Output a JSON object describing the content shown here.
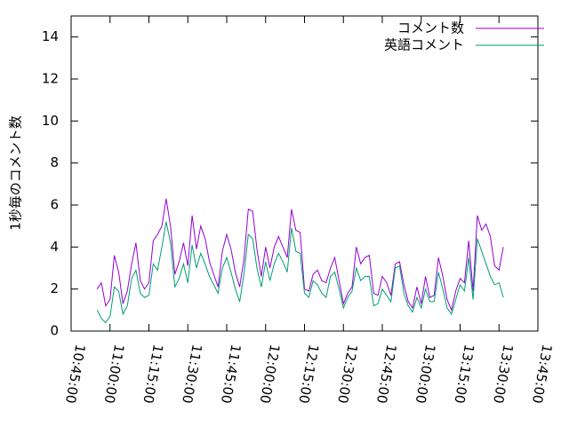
{
  "chart_data": {
    "type": "line",
    "ylabel": "1秒毎のコメント数",
    "x": [
      "10:55:00",
      "10:56:40",
      "10:58:20",
      "11:00:00",
      "11:01:40",
      "11:03:20",
      "11:05:00",
      "11:06:40",
      "11:08:20",
      "11:10:00",
      "11:11:40",
      "11:13:20",
      "11:15:00",
      "11:16:40",
      "11:18:20",
      "11:20:00",
      "11:21:40",
      "11:23:20",
      "11:25:00",
      "11:26:40",
      "11:28:20",
      "11:30:00",
      "11:31:40",
      "11:33:20",
      "11:35:00",
      "11:36:40",
      "11:38:20",
      "11:40:00",
      "11:41:40",
      "11:43:20",
      "11:45:00",
      "11:46:40",
      "11:48:20",
      "11:50:00",
      "11:51:40",
      "11:53:20",
      "11:55:00",
      "11:56:40",
      "11:58:20",
      "12:00:00",
      "12:01:40",
      "12:03:20",
      "12:05:00",
      "12:06:40",
      "12:08:20",
      "12:10:00",
      "12:11:40",
      "12:13:20",
      "12:15:00",
      "12:16:40",
      "12:18:20",
      "12:20:00",
      "12:21:40",
      "12:23:20",
      "12:25:00",
      "12:26:40",
      "12:28:20",
      "12:30:00",
      "12:31:40",
      "12:33:20",
      "12:35:00",
      "12:36:40",
      "12:38:20",
      "12:40:00",
      "12:41:40",
      "12:43:20",
      "12:45:00",
      "12:46:40",
      "12:48:20",
      "12:50:00",
      "12:51:40",
      "12:53:20",
      "12:55:00",
      "12:56:40",
      "12:58:20",
      "13:00:00",
      "13:01:40",
      "13:03:20",
      "13:05:00",
      "13:06:40",
      "13:08:20",
      "13:10:00",
      "13:11:40",
      "13:13:20",
      "13:15:00",
      "13:16:40",
      "13:18:20",
      "13:20:00",
      "13:21:40",
      "13:23:20",
      "13:25:00",
      "13:26:40",
      "13:28:20",
      "13:30:00",
      "13:31:40"
    ],
    "series": [
      {
        "name": "コメント数",
        "color": "#9400d3",
        "values": [
          2.0,
          2.3,
          1.2,
          1.5,
          3.6,
          2.8,
          1.3,
          1.9,
          3.2,
          4.2,
          2.4,
          2.0,
          2.3,
          4.3,
          4.6,
          5.0,
          6.3,
          5.0,
          2.7,
          3.3,
          4.2,
          3.1,
          5.5,
          3.9,
          5.0,
          4.4,
          3.3,
          2.7,
          2.1,
          3.8,
          4.6,
          3.9,
          2.8,
          2.1,
          3.4,
          5.8,
          5.7,
          3.9,
          2.6,
          4.0,
          3.0,
          4.0,
          4.5,
          4.0,
          3.5,
          5.8,
          4.8,
          4.7,
          2.0,
          1.9,
          2.7,
          2.9,
          2.4,
          2.3,
          3.0,
          3.5,
          2.4,
          1.3,
          1.8,
          2.1,
          4.0,
          3.2,
          3.5,
          3.6,
          1.8,
          1.7,
          2.6,
          2.3,
          1.7,
          3.2,
          3.3,
          2.2,
          1.4,
          1.1,
          2.1,
          1.3,
          2.6,
          1.6,
          1.7,
          3.5,
          2.6,
          1.5,
          1.0,
          1.9,
          2.5,
          2.3,
          4.3,
          1.9,
          5.5,
          4.8,
          5.1,
          4.5,
          3.1,
          2.9,
          4.0
        ]
      },
      {
        "name": "英語コメント",
        "color": "#009e73",
        "values": [
          1.0,
          0.6,
          0.4,
          0.7,
          2.1,
          1.9,
          0.8,
          1.2,
          2.5,
          2.9,
          1.8,
          1.6,
          1.7,
          3.2,
          2.9,
          4.0,
          5.2,
          4.2,
          2.1,
          2.5,
          3.2,
          2.3,
          4.1,
          3.0,
          3.7,
          3.2,
          2.6,
          2.2,
          1.8,
          3.0,
          3.5,
          2.8,
          2.0,
          1.4,
          2.7,
          4.6,
          4.4,
          3.0,
          2.1,
          3.3,
          2.4,
          3.2,
          3.7,
          3.3,
          2.8,
          4.9,
          3.8,
          3.7,
          1.8,
          1.6,
          2.4,
          2.2,
          1.8,
          1.6,
          2.6,
          2.8,
          2.0,
          1.1,
          1.6,
          1.9,
          3.0,
          2.4,
          2.6,
          2.6,
          1.2,
          1.3,
          2.0,
          1.7,
          1.4,
          3.0,
          3.1,
          1.8,
          1.2,
          0.9,
          1.6,
          1.1,
          2.0,
          1.4,
          1.4,
          2.8,
          2.0,
          1.1,
          0.8,
          1.5,
          2.2,
          1.9,
          3.5,
          1.5,
          4.4,
          3.8,
          3.2,
          2.6,
          2.2,
          2.3,
          1.6
        ]
      }
    ],
    "xlim": [
      "10:45:00",
      "13:45:00"
    ],
    "xticks": [
      "10:45:00",
      "11:00:00",
      "11:15:00",
      "11:30:00",
      "11:45:00",
      "12:00:00",
      "12:15:00",
      "12:30:00",
      "12:45:00",
      "13:00:00",
      "13:15:00",
      "13:30:00",
      "13:45:00"
    ],
    "ylim": [
      0,
      15
    ],
    "yticks": [
      0,
      2,
      4,
      6,
      8,
      10,
      12,
      14
    ],
    "legend": "top-right"
  }
}
